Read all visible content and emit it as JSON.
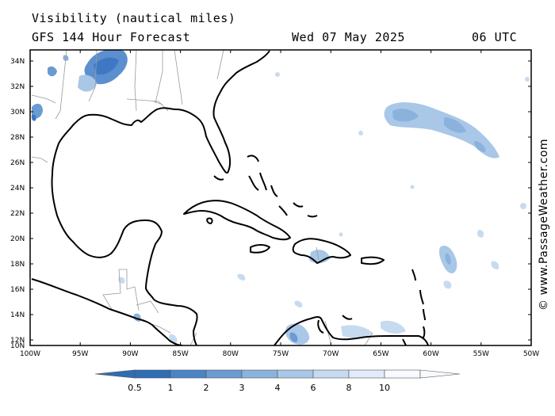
{
  "header": {
    "title": "Visibility (nautical miles)",
    "subtitle": "GFS 144 Hour Forecast",
    "date": "Wed 07 May 2025",
    "time": "06 UTC"
  },
  "credit": "© www.PassageWeather.com",
  "axes": {
    "lat_labels": [
      "34N",
      "32N",
      "30N",
      "28N",
      "26N",
      "24N",
      "22N",
      "20N",
      "18N",
      "16N",
      "14N",
      "12N",
      "10N"
    ],
    "lon_labels": [
      "100W",
      "95W",
      "90W",
      "85W",
      "80W",
      "75W",
      "70W",
      "65W",
      "60W",
      "55W",
      "50W"
    ]
  },
  "legend": {
    "labels": [
      "0.5",
      "1",
      "2",
      "3",
      "4",
      "6",
      "8",
      "10"
    ],
    "colors": [
      "#2f6db5",
      "#4b84c6",
      "#6a9bd2",
      "#8bb2dd",
      "#a9c7e7",
      "#c7dbf0",
      "#e2ecf8",
      "#f7faff"
    ]
  },
  "colors": {
    "land_outline": "#000000",
    "borders": "#9a9a9a",
    "low_vis": "#5b8fd0",
    "mid_vis": "#a9c7e7"
  }
}
